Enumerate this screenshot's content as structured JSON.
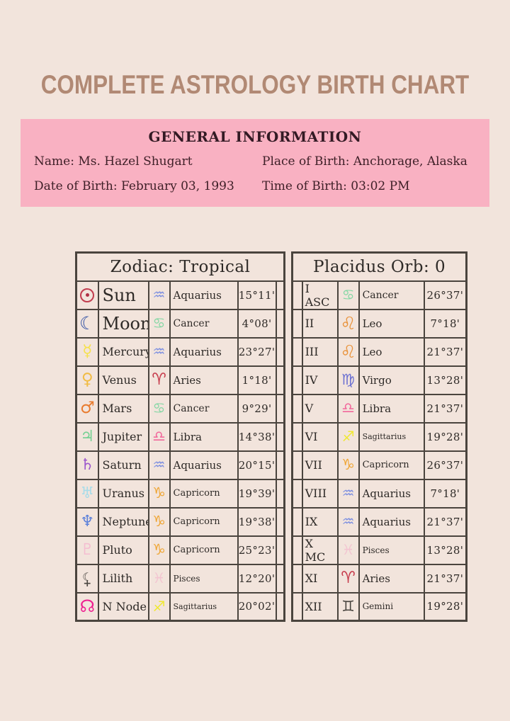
{
  "title": "COMPLETE ASTROLOGY BIRTH CHART",
  "general_info": {
    "heading": "GENERAL INFORMATION",
    "name": "Name: Ms. Hazel Shugart",
    "date_of_birth": "Date of Birth: February 03, 1993",
    "place_of_birth": "Place of Birth: Anchorage, Alaska",
    "time_of_birth": "Time of Birth: 03:02 PM"
  },
  "colors": {
    "page_background": "#f2e4dc",
    "panel_pink": "#f9b1c2",
    "title_brown": "#b18974",
    "table_border": "#4a443e",
    "body_text": "#2e2a27",
    "info_text": "#3f2028"
  },
  "zodiac_table": {
    "header": "Zodiac: Tropical",
    "rows": [
      {
        "planet": "Sun",
        "icon": "sun",
        "glyph": "☉",
        "color": "#c23c4e",
        "sign": "Aquarius",
        "sign_icon": "aquarius",
        "sign_glyph": "♒",
        "sign_color": "#7b8ee1",
        "degrees": "15°11'",
        "big": true
      },
      {
        "planet": "Moon",
        "icon": "moon",
        "glyph": "☾",
        "color": "#2d4ea3",
        "sign": "Cancer",
        "sign_icon": "cancer",
        "sign_glyph": "♋",
        "sign_color": "#84d7a4",
        "degrees": "4°08'",
        "big": true
      },
      {
        "planet": "Mercury",
        "icon": "mercury",
        "glyph": "☿",
        "color": "#f6e14b",
        "sign": "Aquarius",
        "sign_icon": "aquarius",
        "sign_glyph": "♒",
        "sign_color": "#7b8ee1",
        "degrees": "23°27'"
      },
      {
        "planet": "Venus",
        "icon": "venus",
        "glyph": "♀",
        "color": "#f1bc45",
        "sign": "Aries",
        "sign_icon": "aries",
        "sign_glyph": "♈",
        "sign_color": "#c73d4d",
        "degrees": "1°18'"
      },
      {
        "planet": "Mars",
        "icon": "mars",
        "glyph": "♂",
        "color": "#e97b2e",
        "sign": "Cancer",
        "sign_icon": "cancer",
        "sign_glyph": "♋",
        "sign_color": "#84d7a4",
        "degrees": "9°29'"
      },
      {
        "planet": "Jupiter",
        "icon": "jupiter",
        "glyph": "♃",
        "color": "#74d092",
        "sign": "Libra",
        "sign_icon": "libra",
        "sign_glyph": "♎",
        "sign_color": "#f2679b",
        "degrees": "14°38'"
      },
      {
        "planet": "Saturn",
        "icon": "saturn",
        "glyph": "♄",
        "color": "#9c57cd",
        "sign": "Aquarius",
        "sign_icon": "aquarius",
        "sign_glyph": "♒",
        "sign_color": "#7b8ee1",
        "degrees": "20°15'"
      },
      {
        "planet": "Uranus",
        "icon": "uranus",
        "glyph": "♅",
        "color": "#a8dce9",
        "sign": "Capricorn",
        "sign_icon": "capricorn",
        "sign_glyph": "♑",
        "sign_color": "#efa636",
        "degrees": "19°39'"
      },
      {
        "planet": "Neptune",
        "icon": "neptune",
        "glyph": "♆",
        "color": "#5d81da",
        "sign": "Capricorn",
        "sign_icon": "capricorn",
        "sign_glyph": "♑",
        "sign_color": "#efa636",
        "degrees": "19°38'"
      },
      {
        "planet": "Pluto",
        "icon": "pluto",
        "glyph": "♇",
        "color": "#f5bdd1",
        "sign": "Capricorn",
        "sign_icon": "capricorn",
        "sign_glyph": "♑",
        "sign_color": "#efa636",
        "degrees": "25°23'"
      },
      {
        "planet": "Lilith",
        "icon": "lilith",
        "glyph": "⚸",
        "color": "#4b4742",
        "sign": "Pisces",
        "sign_icon": "pisces",
        "sign_glyph": "♓",
        "sign_color": "#f3c4d1",
        "degrees": "12°20'"
      },
      {
        "planet": "N Node",
        "icon": "nnode",
        "glyph": "☊",
        "color": "#ee1f90",
        "sign": "Sagittarius",
        "sign_icon": "sagittarius",
        "sign_glyph": "♐",
        "sign_color": "#f0e832",
        "degrees": "20°02'"
      }
    ]
  },
  "houses_table": {
    "header": "Placidus Orb: 0",
    "rows": [
      {
        "house": "I ASC",
        "sign": "Cancer",
        "sign_icon": "cancer",
        "sign_glyph": "♋",
        "sign_color": "#84d7a4",
        "degrees": "26°37'"
      },
      {
        "house": "II",
        "sign": "Leo",
        "sign_icon": "leo",
        "sign_glyph": "♌",
        "sign_color": "#e9933c",
        "degrees": "7°18'"
      },
      {
        "house": "III",
        "sign": "Leo",
        "sign_icon": "leo",
        "sign_glyph": "♌",
        "sign_color": "#e9933c",
        "degrees": "21°37'"
      },
      {
        "house": "IV",
        "sign": "Virgo",
        "sign_icon": "virgo",
        "sign_glyph": "♍",
        "sign_color": "#6b70d1",
        "degrees": "13°28'"
      },
      {
        "house": "V",
        "sign": "Libra",
        "sign_icon": "libra",
        "sign_glyph": "♎",
        "sign_color": "#f2679b",
        "degrees": "21°37'"
      },
      {
        "house": "VI",
        "sign": "Sagittarius",
        "sign_icon": "sagittarius",
        "sign_glyph": "♐",
        "sign_color": "#f0e832",
        "degrees": "19°28'"
      },
      {
        "house": "VII",
        "sign": "Capricorn",
        "sign_icon": "capricorn",
        "sign_glyph": "♑",
        "sign_color": "#efa636",
        "degrees": "26°37'"
      },
      {
        "house": "VIII",
        "sign": "Aquarius",
        "sign_icon": "aquarius",
        "sign_glyph": "♒",
        "sign_color": "#7b8ee1",
        "degrees": "7°18'"
      },
      {
        "house": "IX",
        "sign": "Aquarius",
        "sign_icon": "aquarius",
        "sign_glyph": "♒",
        "sign_color": "#7b8ee1",
        "degrees": "21°37'"
      },
      {
        "house": "X MC",
        "sign": "Pisces",
        "sign_icon": "pisces",
        "sign_glyph": "♓",
        "sign_color": "#f3c4d1",
        "degrees": "13°28'"
      },
      {
        "house": "XI",
        "sign": "Aries",
        "sign_icon": "aries",
        "sign_glyph": "♈",
        "sign_color": "#c73d4d",
        "degrees": "21°37'"
      },
      {
        "house": "XII",
        "sign": "Gemini",
        "sign_icon": "gemini",
        "sign_glyph": "♊",
        "sign_color": "#45413c",
        "degrees": "19°28'"
      }
    ]
  }
}
